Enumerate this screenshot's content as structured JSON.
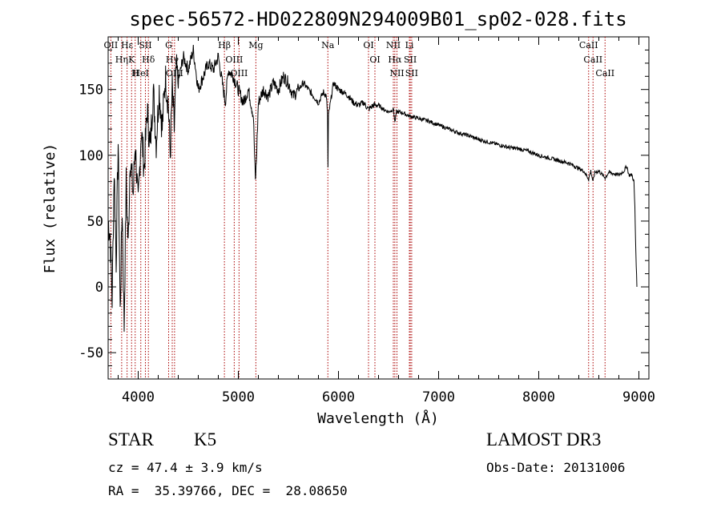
{
  "chart_data": {
    "type": "line",
    "title": "spec-56572-HD022809N294009B01_sp02-028.fits",
    "xlabel": "Wavelength (Å)",
    "ylabel": "Flux (relative)",
    "xlim": [
      3700,
      9100
    ],
    "ylim": [
      -70,
      190
    ],
    "xticks": [
      4000,
      5000,
      6000,
      7000,
      8000,
      9000
    ],
    "yticks": [
      -50,
      0,
      50,
      100,
      150
    ],
    "series": [
      {
        "name": "flux",
        "x": [
          3700,
          3720,
          3740,
          3760,
          3780,
          3800,
          3820,
          3840,
          3860,
          3880,
          3900,
          3920,
          3950,
          3970,
          4000,
          4030,
          4060,
          4090,
          4120,
          4150,
          4180,
          4210,
          4240,
          4270,
          4300,
          4320,
          4340,
          4360,
          4380,
          4400,
          4450,
          4500,
          4550,
          4600,
          4650,
          4700,
          4750,
          4800,
          4850,
          4870,
          4900,
          4950,
          5000,
          5050,
          5100,
          5150,
          5170,
          5180,
          5200,
          5250,
          5300,
          5350,
          5400,
          5450,
          5500,
          5550,
          5600,
          5650,
          5700,
          5750,
          5800,
          5850,
          5880,
          5890,
          5895,
          5900,
          5950,
          6000,
          6050,
          6100,
          6150,
          6200,
          6250,
          6300,
          6350,
          6400,
          6450,
          6500,
          6550,
          6563,
          6580,
          6600,
          6650,
          6700,
          6800,
          6900,
          7000,
          7100,
          7200,
          7300,
          7400,
          7500,
          7600,
          7700,
          7800,
          7900,
          8000,
          8100,
          8200,
          8300,
          8400,
          8450,
          8498,
          8520,
          8542,
          8560,
          8600,
          8662,
          8700,
          8750,
          8800,
          8850,
          8880,
          8900,
          8930,
          8950,
          8960,
          8970,
          8980
        ],
        "y": [
          50,
          40,
          -10,
          90,
          20,
          110,
          -20,
          60,
          -30,
          80,
          30,
          100,
          70,
          110,
          60,
          120,
          90,
          135,
          105,
          150,
          110,
          150,
          120,
          160,
          140,
          100,
          150,
          120,
          165,
          155,
          175,
          165,
          180,
          150,
          160,
          170,
          165,
          175,
          150,
          140,
          165,
          160,
          150,
          140,
          150,
          130,
          80,
          95,
          140,
          150,
          145,
          155,
          150,
          160,
          155,
          145,
          150,
          155,
          150,
          145,
          140,
          148,
          145,
          130,
          90,
          130,
          155,
          150,
          148,
          145,
          140,
          138,
          140,
          135,
          138,
          138,
          135,
          133,
          135,
          125,
          133,
          133,
          132,
          130,
          128,
          126,
          123,
          120,
          117,
          115,
          112,
          110,
          108,
          106,
          105,
          103,
          100,
          98,
          96,
          94,
          90,
          88,
          82,
          88,
          80,
          87,
          88,
          83,
          87,
          86,
          85,
          88,
          92,
          85,
          85,
          80,
          60,
          25,
          0
        ]
      }
    ],
    "annotations": [
      "Hδ",
      "K",
      "Hδ",
      "OII",
      "HeI",
      "SII",
      "OIII",
      "Hγ",
      "G",
      "OIII",
      "OIII",
      "Hβ",
      "Mg",
      "Na",
      "OI",
      "OI",
      "Hα",
      "NII",
      "NII",
      "SII",
      "Li",
      "SII",
      "CaII",
      "CaII",
      "CaII",
      "Hε",
      "Hη",
      "H"
    ],
    "lines": [
      {
        "wl": 3727,
        "label": "OII"
      },
      {
        "wl": 3835,
        "label": "Hη"
      },
      {
        "wl": 3889,
        "label": "Hε"
      },
      {
        "wl": 3934,
        "label": "K"
      },
      {
        "wl": 3970,
        "label": "H"
      },
      {
        "wl": 4026,
        "label": "HeI"
      },
      {
        "wl": 4072,
        "label": "SII"
      },
      {
        "wl": 4102,
        "label": "Hδ"
      },
      {
        "wl": 4304,
        "label": "G"
      },
      {
        "wl": 4340,
        "label": "Hγ"
      },
      {
        "wl": 4363,
        "label": "OIII"
      },
      {
        "wl": 4861,
        "label": "Hβ"
      },
      {
        "wl": 4959,
        "label": "OIII"
      },
      {
        "wl": 5007,
        "label": "OIII"
      },
      {
        "wl": 5175,
        "label": "Mg"
      },
      {
        "wl": 5894,
        "label": "Na"
      },
      {
        "wl": 6300,
        "label": "OI"
      },
      {
        "wl": 6364,
        "label": "OI"
      },
      {
        "wl": 6548,
        "label": "NII"
      },
      {
        "wl": 6563,
        "label": "Hα"
      },
      {
        "wl": 6584,
        "label": "NII"
      },
      {
        "wl": 6708,
        "label": "Li"
      },
      {
        "wl": 6717,
        "label": "SII"
      },
      {
        "wl": 6731,
        "label": "SII"
      },
      {
        "wl": 8498,
        "label": "CaII"
      },
      {
        "wl": 8542,
        "label": "CaII"
      },
      {
        "wl": 8662,
        "label": "CaII"
      }
    ]
  },
  "info": {
    "object_class": "STAR",
    "subclass": "K5",
    "survey": "LAMOST DR3",
    "redshift": "cz = 47.4 ± 3.9 km/s",
    "obs_date": "Obs-Date: 20131006",
    "coords": "RA =  35.39766, DEC =  28.08650"
  },
  "colors": {
    "axes": "#000000",
    "spectrum": "#000000",
    "line_markers": "#aa0000"
  }
}
